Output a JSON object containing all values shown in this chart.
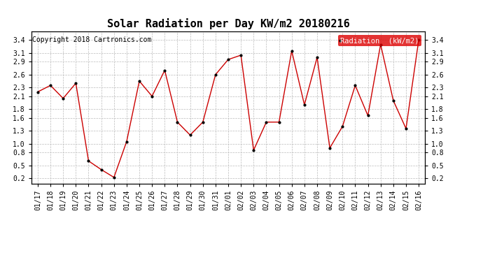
{
  "title": "Solar Radiation per Day KW/m2 20180216",
  "copyright": "Copyright 2018 Cartronics.com",
  "legend_label": "Radiation  (kW/m2)",
  "dates": [
    "01/17",
    "01/18",
    "01/19",
    "01/20",
    "01/21",
    "01/22",
    "01/23",
    "01/24",
    "01/25",
    "01/26",
    "01/27",
    "01/28",
    "01/29",
    "01/30",
    "01/31",
    "02/01",
    "02/02",
    "02/03",
    "02/04",
    "02/05",
    "02/06",
    "02/07",
    "02/08",
    "02/09",
    "02/10",
    "02/11",
    "02/12",
    "02/13",
    "02/14",
    "02/15",
    "02/16"
  ],
  "values": [
    2.2,
    2.35,
    2.05,
    2.4,
    0.6,
    0.4,
    0.22,
    1.05,
    2.45,
    2.1,
    2.7,
    1.5,
    1.2,
    1.5,
    2.6,
    2.95,
    3.05,
    0.85,
    1.5,
    1.5,
    3.15,
    1.9,
    3.0,
    0.9,
    1.4,
    2.35,
    1.65,
    3.3,
    2.0,
    1.35,
    3.4
  ],
  "line_color": "#cc0000",
  "marker_color": "#000000",
  "bg_color": "#ffffff",
  "grid_color": "#bbbbbb",
  "legend_bg": "#dd0000",
  "legend_text_color": "#ffffff",
  "ylim": [
    0.08,
    3.6
  ],
  "yticks": [
    0.2,
    0.5,
    0.8,
    1.0,
    1.3,
    1.6,
    1.8,
    2.1,
    2.3,
    2.6,
    2.9,
    3.1,
    3.4
  ],
  "title_fontsize": 11,
  "copyright_fontsize": 7,
  "legend_fontsize": 7.5,
  "tick_fontsize": 7
}
